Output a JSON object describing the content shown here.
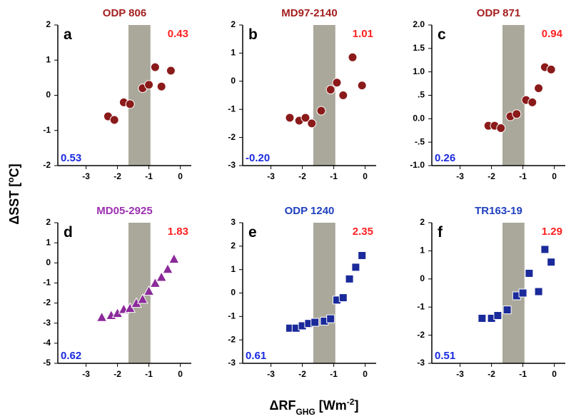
{
  "figure": {
    "ylabel": [
      {
        "text": "ΔSST ["
      },
      {
        "text": "o",
        "sup": true
      },
      {
        "text": "C]"
      }
    ],
    "xlabel": [
      {
        "text": "ΔRF"
      },
      {
        "text": "GHG",
        "sub": true
      },
      {
        "text": " [Wm"
      },
      {
        "text": "-2",
        "sup": true
      },
      {
        "text": "]"
      }
    ]
  },
  "chart_data": [
    {
      "type": "scatter",
      "title": "ODP 806",
      "title_color": "#a52020",
      "panel_label": "a",
      "slope_high": "0.43",
      "slope_low": "0.53",
      "xlim": [
        -3.9,
        0.35
      ],
      "xticks": [
        -3,
        -2,
        -1,
        0
      ],
      "ylim": [
        -2,
        2
      ],
      "yticks": [
        -2,
        -1,
        0,
        1,
        2
      ],
      "band": [
        -1.65,
        -0.95
      ],
      "series": [
        {
          "marker": "circle",
          "color": "#8b1a1a",
          "x": [
            -2.3,
            -2.1,
            -1.8,
            -1.6,
            -1.2,
            -1.0,
            -0.8,
            -0.6,
            -0.3
          ],
          "values": [
            -0.6,
            -0.7,
            -0.2,
            -0.25,
            0.2,
            0.3,
            0.8,
            0.25,
            0.7
          ]
        }
      ]
    },
    {
      "type": "scatter",
      "title": "MD97-2140",
      "title_color": "#a52020",
      "panel_label": "b",
      "slope_high": "1.01",
      "slope_low": "-0.20",
      "xlim": [
        -3.9,
        0.35
      ],
      "xticks": [
        -3,
        -2,
        -1,
        0
      ],
      "ylim": [
        -3,
        2
      ],
      "yticks": [
        -3,
        -2,
        -1,
        0,
        1,
        2
      ],
      "band": [
        -1.65,
        -0.95
      ],
      "series": [
        {
          "marker": "circle",
          "color": "#8b1a1a",
          "x": [
            -2.4,
            -2.1,
            -1.9,
            -1.7,
            -1.4,
            -1.1,
            -0.9,
            -0.7,
            -0.4,
            -0.1
          ],
          "values": [
            -1.3,
            -1.4,
            -1.3,
            -1.5,
            -1.05,
            -0.3,
            -0.05,
            -0.5,
            0.85,
            -0.15
          ]
        }
      ]
    },
    {
      "type": "scatter",
      "title": "ODP 871",
      "title_color": "#a52020",
      "panel_label": "c",
      "slope_high": "0.94",
      "slope_low": "0.26",
      "xlim": [
        -3.9,
        0.35
      ],
      "xticks": [
        -3,
        -2,
        -1,
        0
      ],
      "ylim": [
        -1,
        2
      ],
      "yticks": [
        {
          "value": -1,
          "label": "-1.0"
        },
        {
          "value": -0.5,
          "label": "-.5"
        },
        {
          "value": 0,
          "label": "0.0"
        },
        {
          "value": 0.5,
          "label": ".5"
        },
        {
          "value": 1,
          "label": "1.0"
        },
        {
          "value": 1.5,
          "label": "1.5"
        },
        {
          "value": 2,
          "label": "2.0"
        }
      ],
      "band": [
        -1.65,
        -0.95
      ],
      "series": [
        {
          "marker": "circle",
          "color": "#8b1a1a",
          "x": [
            -2.1,
            -1.9,
            -1.7,
            -1.4,
            -1.2,
            -0.9,
            -0.7,
            -0.5,
            -0.3,
            -0.1
          ],
          "values": [
            -0.15,
            -0.15,
            -0.2,
            0.05,
            0.1,
            0.4,
            0.35,
            0.65,
            1.1,
            1.05
          ]
        }
      ]
    },
    {
      "type": "scatter",
      "title": "MD05-2925",
      "title_color": "#9b30b0",
      "panel_label": "d",
      "slope_high": "1.83",
      "slope_low": "0.62",
      "xlim": [
        -3.9,
        0.35
      ],
      "xticks": [
        -3,
        -2,
        -1,
        0
      ],
      "ylim": [
        -5,
        2
      ],
      "yticks": [
        -5,
        -4,
        -3,
        -2,
        -1,
        0,
        1,
        2
      ],
      "band": [
        -1.65,
        -0.95
      ],
      "series": [
        {
          "marker": "triangle",
          "color": "#8b2a9a",
          "x": [
            -2.5,
            -2.2,
            -2.0,
            -1.8,
            -1.6,
            -1.4,
            -1.2,
            -1.0,
            -0.8,
            -0.6,
            -0.4,
            -0.2
          ],
          "values": [
            -2.7,
            -2.6,
            -2.5,
            -2.3,
            -2.25,
            -2.0,
            -1.8,
            -1.4,
            -1.0,
            -0.7,
            -0.3,
            0.2
          ]
        }
      ]
    },
    {
      "type": "scatter",
      "title": "ODP 1240",
      "title_color": "#1f3fbf",
      "panel_label": "e",
      "slope_high": "2.35",
      "slope_low": "0.61",
      "xlim": [
        -3.9,
        0.35
      ],
      "xticks": [
        -3,
        -2,
        -1,
        0
      ],
      "ylim": [
        -3,
        3
      ],
      "yticks": [
        -3,
        -2,
        -1,
        0,
        1,
        2,
        3
      ],
      "band": [
        -1.65,
        -0.95
      ],
      "series": [
        {
          "marker": "square",
          "color": "#1a2a9a",
          "x": [
            -2.4,
            -2.2,
            -2.0,
            -1.8,
            -1.6,
            -1.3,
            -1.1,
            -0.9,
            -0.7,
            -0.5,
            -0.3,
            -0.1
          ],
          "values": [
            -1.5,
            -1.5,
            -1.4,
            -1.3,
            -1.25,
            -1.2,
            -1.1,
            -0.3,
            -0.2,
            0.6,
            1.1,
            1.6
          ]
        }
      ]
    },
    {
      "type": "scatter",
      "title": "TR163-19",
      "title_color": "#1f3fbf",
      "panel_label": "f",
      "slope_high": "1.29",
      "slope_low": "0.51",
      "xlim": [
        -3.9,
        0.35
      ],
      "xticks": [
        -3,
        -2,
        -1,
        0
      ],
      "ylim": [
        -3,
        2
      ],
      "yticks": [
        -3,
        -2,
        -1,
        0,
        1,
        2
      ],
      "band": [
        -1.65,
        -0.95
      ],
      "series": [
        {
          "marker": "square",
          "color": "#1a2a9a",
          "x": [
            -2.3,
            -2.0,
            -1.8,
            -1.5,
            -1.2,
            -1.0,
            -0.8,
            -0.5,
            -0.3,
            -0.1
          ],
          "values": [
            -1.4,
            -1.4,
            -1.3,
            -1.1,
            -0.6,
            -0.5,
            0.2,
            -0.45,
            1.05,
            0.6
          ]
        }
      ]
    }
  ]
}
